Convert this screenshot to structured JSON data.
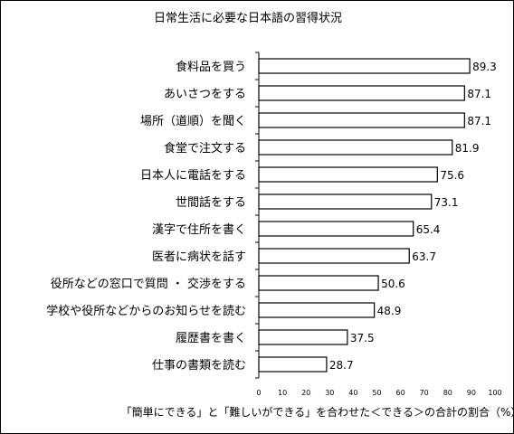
{
  "chart_data": {
    "type": "bar",
    "orientation": "horizontal",
    "title": "日常生活に必要な日本語の習得状況",
    "categories": [
      "食料品を買う",
      "あいさつをする",
      "場所（道順）を聞く",
      "食堂で注文する",
      "日本人に電話をする",
      "世間話をする",
      "漢字で住所を書く",
      "医者に病状を話す",
      "役所などの窓口で質問 ・ 交渉をする",
      "学校や役所などからのお知らせを読む",
      "履歴書を書く",
      "仕事の書類を読む"
    ],
    "values": [
      89.3,
      87.1,
      87.1,
      81.9,
      75.6,
      73.1,
      65.4,
      63.7,
      50.6,
      48.9,
      37.5,
      28.7
    ],
    "value_labels": [
      "89.3",
      "87.1",
      "87.1",
      "81.9",
      "75.6",
      "73.1",
      "65.4",
      "63.7",
      "50.6",
      "48.9",
      "37.5",
      "28.7"
    ],
    "xlim": [
      0,
      100
    ],
    "x_ticks": [
      "0",
      "10",
      "20",
      "30",
      "40",
      "50",
      "60",
      "70",
      "80",
      "90",
      "100"
    ],
    "xlabel": "「簡単にできる」と「難しいができる」を合わせた＜できる＞の合計の割合（%）",
    "ylabel": "",
    "grid": false,
    "legend": "none",
    "bar_color": "#ffffff",
    "bar_edge_color": "#000000"
  }
}
